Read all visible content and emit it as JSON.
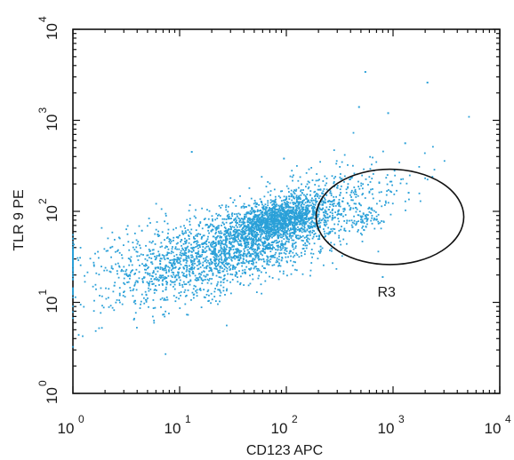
{
  "chart_data": {
    "type": "scatter",
    "title": "",
    "xlabel": "CD123 APC",
    "ylabel": "TLR 9 PE",
    "xscale": "log",
    "yscale": "log",
    "xlim": [
      1,
      10000
    ],
    "ylim": [
      1,
      10000
    ],
    "x_ticks": [
      {
        "base": "10",
        "exp": "0"
      },
      {
        "base": "10",
        "exp": "1"
      },
      {
        "base": "10",
        "exp": "2"
      },
      {
        "base": "10",
        "exp": "3"
      },
      {
        "base": "10",
        "exp": "4"
      }
    ],
    "y_ticks": [
      {
        "base": "10",
        "exp": "0"
      },
      {
        "base": "10",
        "exp": "1"
      },
      {
        "base": "10",
        "exp": "2"
      },
      {
        "base": "10",
        "exp": "3"
      },
      {
        "base": "10",
        "exp": "4"
      }
    ],
    "grid": false,
    "point_color": "#2aa0d8",
    "gate_color": "#111111",
    "gates": [
      {
        "name": "R3",
        "shape": "ellipse",
        "center": [
          980,
          100
        ],
        "x_range": [
          190,
          4600
        ],
        "y_range": [
          26,
          290
        ]
      }
    ],
    "populations": [
      {
        "description": "main diagonal cluster",
        "n": 2600,
        "center_log": [
          1.72,
          1.72
        ],
        "spread_log": [
          0.55,
          0.32
        ],
        "correlation": 0.72
      },
      {
        "description": "dense core",
        "n": 900,
        "center_log": [
          1.92,
          1.9
        ],
        "spread_log": [
          0.22,
          0.1
        ],
        "correlation": 0.6
      },
      {
        "description": "low tail",
        "n": 350,
        "center_log": [
          0.85,
          1.45
        ],
        "spread_log": [
          0.45,
          0.25
        ],
        "correlation": 0.3
      },
      {
        "description": "cells inside R3",
        "n": 60,
        "center_log": [
          2.75,
          1.9
        ],
        "spread_log": [
          0.08,
          0.06
        ],
        "correlation": 0.0
      },
      {
        "description": "events on x axis",
        "n": 60,
        "center_log": [
          0.0,
          1.45
        ],
        "spread_log": [
          0.0,
          0.12
        ],
        "correlation": 0.0
      }
    ],
    "outliers": [
      [
        550,
        3400
      ],
      [
        2100,
        2600
      ],
      [
        480,
        1400
      ],
      [
        900,
        1200
      ],
      [
        13,
        450
      ],
      [
        95,
        380
      ],
      [
        1300,
        560
      ],
      [
        1400,
        160
      ],
      [
        800,
        19
      ]
    ]
  }
}
